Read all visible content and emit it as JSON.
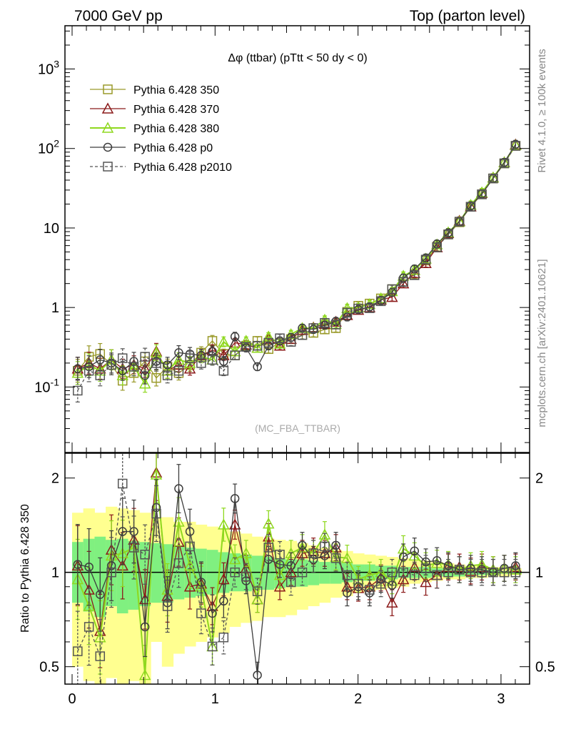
{
  "header": {
    "left": "7000 GeV pp",
    "right": "Top (parton level)"
  },
  "side_labels": {
    "rivet": "Rivet 4.1.0, ≥ 100k events",
    "mcplots": "mcplots.cern.ch [arXiv:2401.10621]"
  },
  "colors": {
    "s350": "#9a9a2a",
    "s370": "#8b1a1a",
    "s380": "#8fd81f",
    "p0": "#3d3d3d",
    "p2010": "#555555",
    "band_yellow": "#ffff90",
    "band_green": "#80f080"
  },
  "chart_data": [
    {
      "type": "line",
      "title": "Δφ (ttbar) (pTtt < 50 dy < 0)",
      "watermark": "(MC_FBA_TTBAR)",
      "xlabel": "",
      "ylabel": "",
      "yscale": "log",
      "xlim": [
        -0.05,
        3.2
      ],
      "ylim": [
        0.015,
        3500
      ],
      "y_tick_labels": [
        "10^-1",
        "1",
        "10",
        "10^2",
        "10^3"
      ],
      "x": [
        0.039,
        0.118,
        0.196,
        0.275,
        0.353,
        0.432,
        0.51,
        0.589,
        0.667,
        0.746,
        0.824,
        0.903,
        0.981,
        1.06,
        1.139,
        1.217,
        1.296,
        1.374,
        1.453,
        1.531,
        1.61,
        1.688,
        1.767,
        1.845,
        1.924,
        2.002,
        2.081,
        2.16,
        2.238,
        2.317,
        2.395,
        2.474,
        2.552,
        2.631,
        2.709,
        2.788,
        2.866,
        2.945,
        3.023,
        3.102
      ],
      "series": [
        {
          "name": "Pythia 6.428 350",
          "marker": "square",
          "color_key": "s350",
          "values": [
            0.16,
            0.24,
            0.26,
            0.19,
            0.12,
            0.15,
            0.21,
            0.13,
            0.18,
            0.15,
            0.19,
            0.27,
            0.38,
            0.26,
            0.25,
            0.33,
            0.38,
            0.3,
            0.36,
            0.4,
            0.45,
            0.48,
            0.53,
            0.55,
            0.88,
            1.05,
            1.12,
            1.3,
            1.7,
            2.1,
            2.6,
            3.9,
            5.8,
            8.3,
            11.8,
            18.5,
            26.5,
            42.0,
            65.0,
            108
          ]
        },
        {
          "name": "Pythia 6.428 370",
          "marker": "triangle",
          "color_key": "s370",
          "values": [
            0.17,
            0.2,
            0.17,
            0.22,
            0.17,
            0.19,
            0.17,
            0.28,
            0.16,
            0.19,
            0.17,
            0.25,
            0.29,
            0.25,
            0.36,
            0.34,
            0.31,
            0.4,
            0.33,
            0.4,
            0.52,
            0.56,
            0.62,
            0.66,
            0.8,
            0.93,
            1.0,
            1.25,
            1.35,
            2.0,
            2.7,
            3.6,
            5.7,
            8.6,
            12.3,
            18.6,
            27.5,
            43.0,
            67.0,
            112
          ]
        },
        {
          "name": "Pythia 6.428 380",
          "marker": "triangle",
          "color_key": "s380",
          "values": [
            0.15,
            0.19,
            0.16,
            0.22,
            0.14,
            0.18,
            0.11,
            0.27,
            0.16,
            0.22,
            0.2,
            0.24,
            0.22,
            0.37,
            0.28,
            0.38,
            0.31,
            0.43,
            0.35,
            0.46,
            0.55,
            0.55,
            0.7,
            0.62,
            0.98,
            1.0,
            1.1,
            1.3,
            1.6,
            2.5,
            2.95,
            4.1,
            6.2,
            8.8,
            12.0,
            19.5,
            28.0,
            43.0,
            67.0,
            110
          ]
        },
        {
          "name": "Pythia 6.428 p0",
          "marker": "circle",
          "color_key": "p0",
          "values": [
            0.17,
            0.18,
            0.22,
            0.2,
            0.16,
            0.21,
            0.14,
            0.21,
            0.19,
            0.27,
            0.26,
            0.25,
            0.28,
            0.21,
            0.43,
            0.31,
            0.18,
            0.33,
            0.38,
            0.42,
            0.55,
            0.53,
            0.6,
            0.67,
            0.76,
            0.94,
            1.02,
            1.23,
            1.55,
            2.35,
            3.05,
            4.2,
            6.3,
            8.7,
            12.0,
            19.0,
            27.0,
            42.0,
            67.0,
            113
          ]
        },
        {
          "name": "Pythia 6.428 p2010",
          "marker": "square-dashed",
          "color_key": "p2010",
          "values": [
            0.09,
            0.16,
            0.14,
            0.19,
            0.23,
            0.18,
            0.24,
            0.2,
            0.14,
            0.16,
            0.23,
            0.2,
            0.22,
            0.16,
            0.25,
            0.32,
            0.33,
            0.36,
            0.41,
            0.37,
            0.45,
            0.55,
            0.64,
            0.61,
            0.86,
            0.97,
            0.98,
            1.2,
            1.7,
            2.1,
            2.55,
            4.0,
            5.7,
            8.3,
            12.0,
            18.5,
            26.5,
            42.0,
            65.0,
            108
          ]
        }
      ],
      "legend": {
        "position": "top-left"
      }
    },
    {
      "type": "line",
      "title": "",
      "xlabel": "",
      "ylabel": "Ratio to Pythia 6.428 350",
      "yscale": "log",
      "xlim": [
        -0.05,
        3.2
      ],
      "ylim": [
        0.44,
        2.4
      ],
      "x_tick_labels": [
        "0",
        "1",
        "2",
        "3"
      ],
      "y_tick_labels": [
        "0.5",
        "1",
        "2"
      ],
      "band_x_edges": [
        0.0,
        0.078,
        0.157,
        0.235,
        0.314,
        0.392,
        0.471,
        0.55,
        0.628,
        0.707,
        0.785,
        0.864,
        0.942,
        1.021,
        1.1,
        1.178,
        1.257,
        1.335,
        1.414,
        1.492,
        1.571,
        1.649,
        1.728,
        1.806,
        1.885,
        1.963,
        2.042,
        2.121,
        2.199,
        2.278,
        2.356,
        2.435,
        2.513,
        2.592,
        2.67,
        2.749,
        2.827,
        2.906,
        2.985,
        3.063,
        3.142
      ],
      "band_yellow_lo": [
        0.5,
        0.45,
        0.4,
        0.46,
        0.38,
        0.45,
        0.4,
        0.6,
        0.5,
        0.55,
        0.58,
        0.6,
        0.62,
        0.64,
        0.67,
        0.69,
        0.7,
        0.72,
        0.72,
        0.73,
        0.76,
        0.78,
        0.8,
        0.83,
        0.84,
        0.86,
        0.87,
        0.88,
        0.89,
        0.9,
        0.92,
        0.93,
        0.94,
        0.95,
        0.95,
        0.96,
        0.96,
        0.97,
        0.97,
        0.98
      ],
      "band_yellow_hi": [
        1.55,
        1.6,
        1.55,
        1.62,
        1.6,
        1.58,
        1.55,
        1.5,
        1.5,
        1.45,
        1.45,
        1.42,
        1.4,
        1.38,
        1.35,
        1.33,
        1.3,
        1.28,
        1.27,
        1.26,
        1.24,
        1.22,
        1.2,
        1.18,
        1.17,
        1.15,
        1.14,
        1.13,
        1.12,
        1.11,
        1.1,
        1.09,
        1.08,
        1.07,
        1.06,
        1.05,
        1.05,
        1.04,
        1.04,
        1.03
      ],
      "band_green_lo": [
        0.8,
        0.75,
        0.72,
        0.78,
        0.74,
        0.76,
        0.78,
        0.8,
        0.8,
        0.82,
        0.83,
        0.84,
        0.85,
        0.86,
        0.87,
        0.87,
        0.88,
        0.88,
        0.89,
        0.9,
        0.9,
        0.91,
        0.92,
        0.92,
        0.93,
        0.94,
        0.94,
        0.95,
        0.95,
        0.96,
        0.96,
        0.96,
        0.97,
        0.97,
        0.97,
        0.98,
        0.98,
        0.98,
        0.99,
        0.99
      ],
      "band_green_hi": [
        1.25,
        1.28,
        1.3,
        1.27,
        1.28,
        1.26,
        1.25,
        1.24,
        1.23,
        1.22,
        1.2,
        1.19,
        1.18,
        1.16,
        1.15,
        1.14,
        1.13,
        1.12,
        1.11,
        1.1,
        1.1,
        1.09,
        1.08,
        1.08,
        1.07,
        1.06,
        1.06,
        1.05,
        1.05,
        1.04,
        1.04,
        1.04,
        1.03,
        1.03,
        1.03,
        1.02,
        1.02,
        1.02,
        1.01,
        1.01
      ],
      "series": [
        {
          "name": "Pythia 6.428 370",
          "color_key": "s370",
          "marker": "triangle",
          "values": [
            1.05,
            0.88,
            0.65,
            1.18,
            1.05,
            1.27,
            0.82,
            2.08,
            0.84,
            1.25,
            0.9,
            0.92,
            0.78,
            0.95,
            1.42,
            1.03,
            0.82,
            1.3,
            0.9,
            1.0,
            1.15,
            1.17,
            1.15,
            1.2,
            0.9,
            0.89,
            0.9,
            0.96,
            0.8,
            0.95,
            1.04,
            0.93,
            0.98,
            1.04,
            1.04,
            1.01,
            1.04,
            1.02,
            1.03,
            1.04
          ]
        },
        {
          "name": "Pythia 6.428 380",
          "color_key": "s380",
          "marker": "triangle",
          "values": [
            0.95,
            0.78,
            0.62,
            1.13,
            1.15,
            1.2,
            0.47,
            2.05,
            0.88,
            1.45,
            1.05,
            0.9,
            0.58,
            1.42,
            1.1,
            1.15,
            0.82,
            1.43,
            0.98,
            1.15,
            1.2,
            1.15,
            1.32,
            1.12,
            1.11,
            0.95,
            0.98,
            1.0,
            0.94,
            1.19,
            1.13,
            1.05,
            1.07,
            1.06,
            1.02,
            1.05,
            1.06,
            1.02,
            1.03,
            1.02
          ]
        },
        {
          "name": "Pythia 6.428 p0",
          "color_key": "p0",
          "marker": "circle",
          "values": [
            1.06,
            1.04,
            0.85,
            1.05,
            1.35,
            1.35,
            0.67,
            1.61,
            0.8,
            1.85,
            1.35,
            0.93,
            0.74,
            0.81,
            1.72,
            0.94,
            0.47,
            1.1,
            1.06,
            1.05,
            1.22,
            1.1,
            1.13,
            1.22,
            0.86,
            0.9,
            0.86,
            0.95,
            0.91,
            1.12,
            1.17,
            1.08,
            1.09,
            1.05,
            1.02,
            1.03,
            1.02,
            1.0,
            1.03,
            1.05
          ]
        },
        {
          "name": "Pythia 6.428 p2010",
          "color_key": "p2010",
          "marker": "square-dashed",
          "values": [
            0.56,
            0.67,
            0.54,
            1.0,
            1.92,
            1.2,
            1.14,
            1.54,
            0.78,
            1.07,
            1.21,
            0.74,
            0.58,
            0.62,
            1.0,
            0.97,
            0.87,
            1.2,
            1.14,
            0.93,
            1.0,
            1.15,
            1.21,
            1.11,
            0.98,
            0.92,
            0.88,
            0.92,
            1.0,
            1.0,
            0.98,
            1.03,
            0.98,
            1.0,
            1.02,
            1.0,
            1.0,
            1.0,
            1.0,
            1.0
          ]
        }
      ]
    }
  ]
}
